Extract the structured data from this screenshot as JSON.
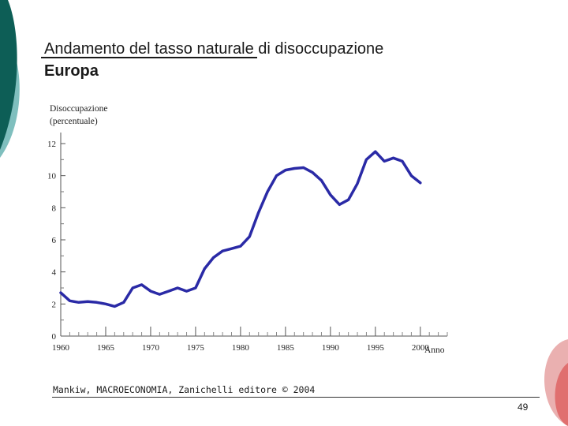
{
  "slide": {
    "title_line1": "Andamento del tasso naturale di disoccupazione",
    "title_line2": "Europa",
    "credit": "Mankiw, MACROECONOMIA, Zanichelli editore © 2004",
    "page_number": "49",
    "colors": {
      "teal_dark": "#0d5e56",
      "teal_light": "#7fbfbe",
      "salmon": "#e06f6f",
      "salmon_light": "#eab0b0",
      "series": "#2a2aa6"
    }
  },
  "chart_data": {
    "type": "line",
    "ylabel_line1": "Disoccupazione",
    "ylabel_line2": "(percentuale)",
    "xlabel": "Anno",
    "xlim": [
      1960,
      2003
    ],
    "ylim": [
      0,
      12
    ],
    "x_ticks": [
      1960,
      1965,
      1970,
      1975,
      1980,
      1985,
      1990,
      1995,
      2000
    ],
    "y_ticks": [
      0,
      2,
      4,
      6,
      8,
      10,
      12
    ],
    "series": [
      {
        "name": "Europa",
        "x": [
          1960,
          1961,
          1962,
          1963,
          1964,
          1965,
          1966,
          1967,
          1968,
          1969,
          1970,
          1971,
          1972,
          1973,
          1974,
          1975,
          1976,
          1977,
          1978,
          1979,
          1980,
          1981,
          1982,
          1983,
          1984,
          1985,
          1986,
          1987,
          1988,
          1989,
          1990,
          1991,
          1992,
          1993,
          1994,
          1995,
          1996,
          1997,
          1998,
          1999,
          2000
        ],
        "values": [
          2.7,
          2.2,
          2.1,
          2.15,
          2.1,
          2.0,
          1.85,
          2.1,
          3.0,
          3.2,
          2.8,
          2.6,
          2.8,
          3.0,
          2.8,
          3.0,
          4.2,
          4.9,
          5.3,
          5.45,
          5.6,
          6.2,
          7.7,
          9.0,
          10.0,
          10.35,
          10.45,
          10.5,
          10.2,
          9.7,
          8.8,
          8.2,
          8.5,
          9.5,
          11.0,
          11.5,
          10.9,
          11.1,
          10.9,
          10.0,
          9.55
        ]
      }
    ]
  }
}
